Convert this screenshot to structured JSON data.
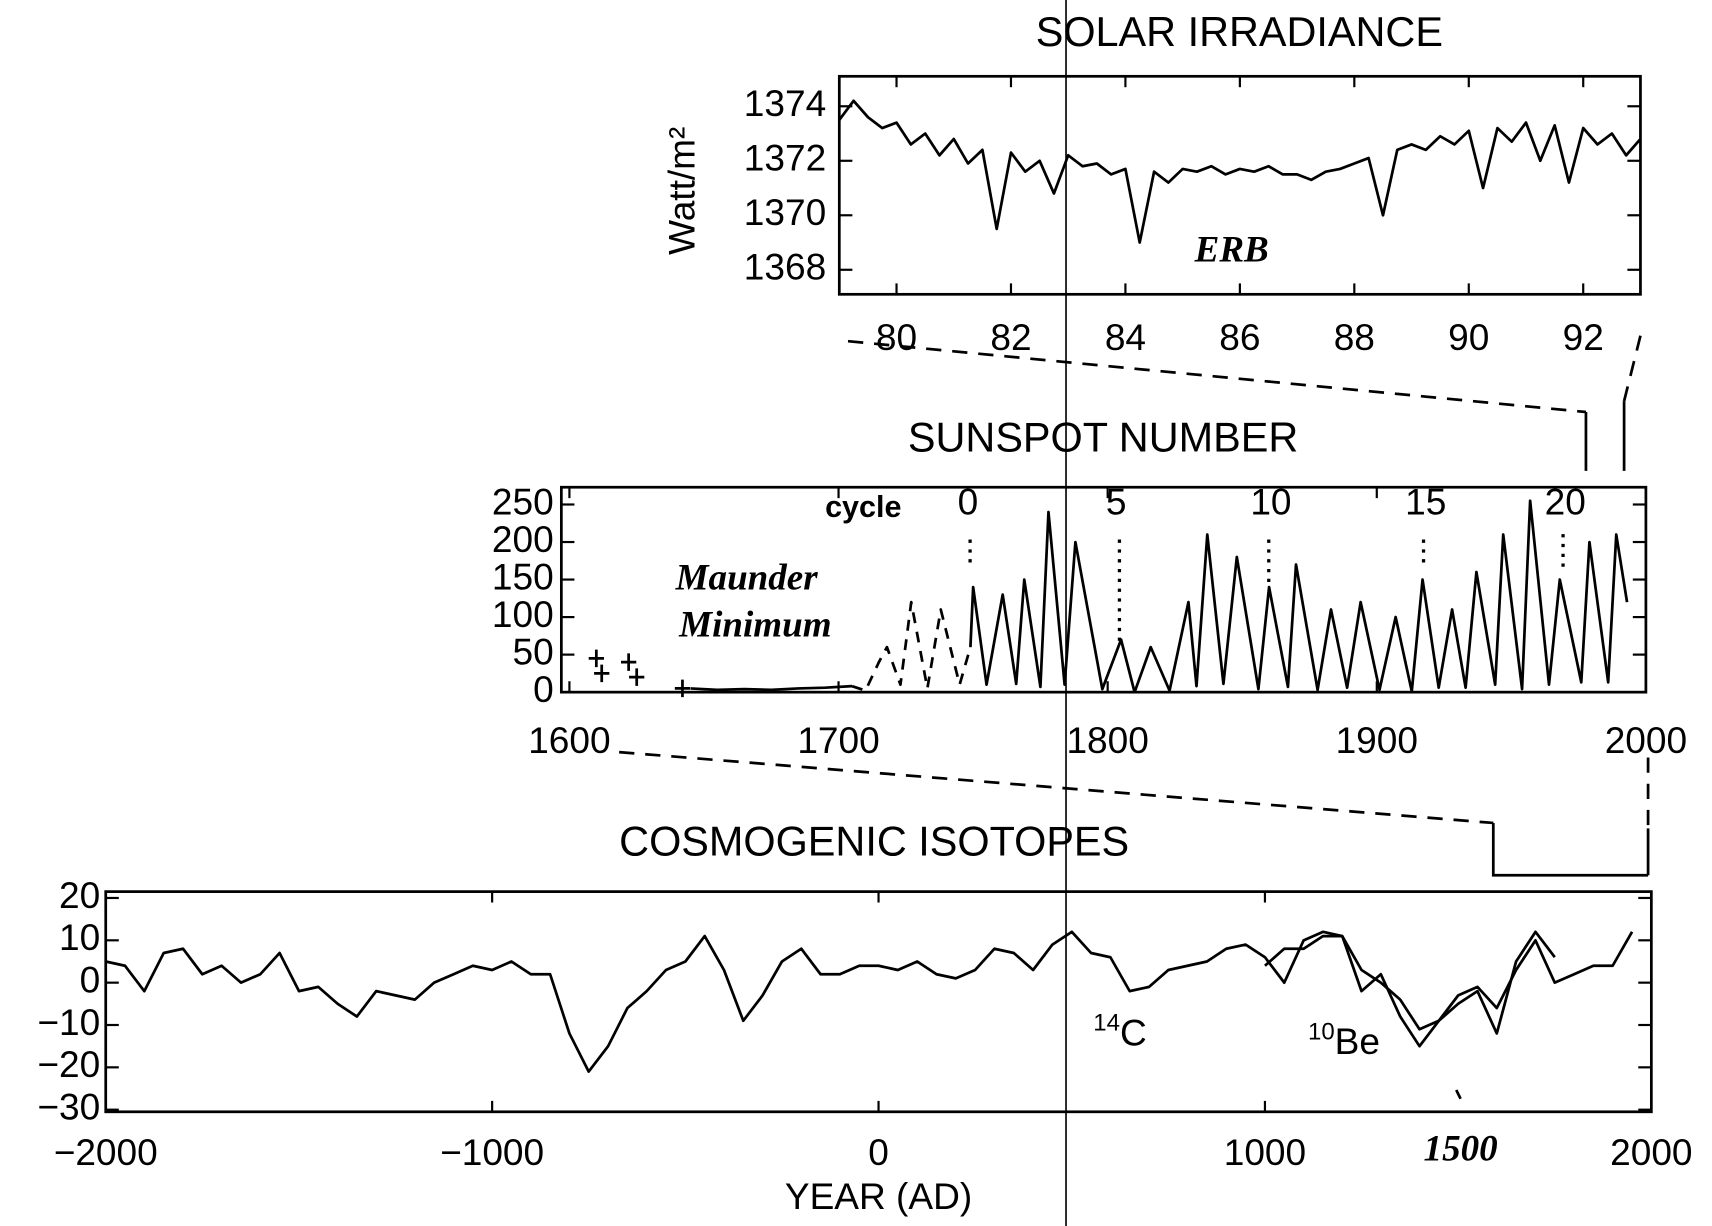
{
  "chart_data": [
    {
      "type": "line",
      "title": "SOLAR IRRADIANCE",
      "y_label": "Watt/m²",
      "annotations": [
        "ERB"
      ],
      "xlim": [
        79,
        93
      ],
      "xticks": [
        80,
        82,
        84,
        86,
        88,
        90,
        92
      ],
      "ylim": [
        1367.1,
        1375.1
      ],
      "yticks": [
        1368,
        1370,
        1372,
        1374
      ],
      "series": [
        {
          "color": "#000000",
          "dash": false,
          "x": [
            79.0,
            79.25,
            79.5,
            79.75,
            80.0,
            80.25,
            80.5,
            80.75,
            81.0,
            81.25,
            81.5,
            81.75,
            82.0,
            82.25,
            82.5,
            82.75,
            83.0,
            83.25,
            83.5,
            83.75,
            84.0,
            84.25,
            84.5,
            84.75,
            85.0,
            85.25,
            85.5,
            85.75,
            86.0,
            86.25,
            86.5,
            86.75,
            87.0,
            87.25,
            87.5,
            87.75,
            88.0,
            88.25,
            88.5,
            88.75,
            89.0,
            89.25,
            89.5,
            89.75,
            90.0,
            90.25,
            90.5,
            90.75,
            91.0,
            91.25,
            91.5,
            91.75,
            92.0,
            92.25,
            92.5,
            92.75,
            93.0
          ],
          "values": [
            1373.5,
            1374.2,
            1373.6,
            1373.2,
            1373.4,
            1372.6,
            1373.0,
            1372.2,
            1372.8,
            1371.9,
            1372.4,
            1369.5,
            1372.3,
            1371.6,
            1372.0,
            1370.8,
            1372.2,
            1371.8,
            1371.9,
            1371.5,
            1371.7,
            1369.0,
            1371.6,
            1371.2,
            1371.7,
            1371.6,
            1371.8,
            1371.5,
            1371.7,
            1371.6,
            1371.8,
            1371.5,
            1371.5,
            1371.3,
            1371.6,
            1371.7,
            1371.9,
            1372.1,
            1370.0,
            1372.4,
            1372.6,
            1372.4,
            1372.9,
            1372.6,
            1373.1,
            1371.0,
            1373.2,
            1372.7,
            1373.4,
            1372.0,
            1373.3,
            1371.2,
            1373.2,
            1372.6,
            1373.0,
            1372.2,
            1372.8
          ]
        }
      ]
    },
    {
      "type": "line",
      "title": "SUNSPOT NUMBER",
      "annotations": [
        "cycle",
        "0",
        "5",
        "10",
        "15",
        "20",
        "Maunder",
        "Minimum"
      ],
      "xlim": [
        1597,
        2000
      ],
      "xticks": [
        1600,
        1700,
        1800,
        1900,
        2000
      ],
      "ylim": [
        0,
        273
      ],
      "yticks": [
        0,
        50,
        100,
        150,
        200,
        250
      ],
      "points": {
        "x": [
          1610,
          1612,
          1622,
          1625,
          1642
        ],
        "values": [
          45,
          25,
          40,
          20,
          5
        ]
      },
      "series": [
        {
          "color": "#000000",
          "dash": false,
          "x": [
            1645,
            1655,
            1665,
            1675,
            1685,
            1695,
            1705
          ],
          "values": [
            5,
            3,
            4,
            3,
            5,
            6,
            8
          ]
        },
        {
          "color": "#000000",
          "dash": true,
          "x": [
            1705,
            1710,
            1715,
            1718,
            1723,
            1727,
            1733,
            1738,
            1745,
            1749
          ],
          "values": [
            8,
            2,
            40,
            60,
            10,
            120,
            5,
            110,
            10,
            60
          ]
        },
        {
          "color": "#000000",
          "dash": false,
          "x": [
            1749,
            1750,
            1755,
            1761,
            1766,
            1769,
            1775,
            1778,
            1784,
            1788,
            1798,
            1805,
            1810,
            1816,
            1823,
            1830,
            1833,
            1837,
            1843,
            1848,
            1856,
            1860,
            1867,
            1870,
            1878,
            1883,
            1889,
            1894,
            1901,
            1907,
            1913,
            1917,
            1923,
            1928,
            1933,
            1937,
            1944,
            1947,
            1954,
            1957,
            1964,
            1968,
            1976,
            1979,
            1986,
            1989,
            1993
          ],
          "values": [
            60,
            140,
            10,
            130,
            11,
            150,
            7,
            240,
            10,
            200,
            4,
            70,
            0,
            60,
            2,
            120,
            8,
            210,
            11,
            180,
            4,
            140,
            7,
            170,
            3,
            110,
            6,
            120,
            3,
            100,
            1,
            150,
            6,
            110,
            6,
            160,
            10,
            210,
            4,
            255,
            10,
            150,
            13,
            200,
            13,
            210,
            120
          ]
        }
      ]
    },
    {
      "type": "line",
      "title": "COSMOGENIC ISOTOPES",
      "x_label": "YEAR (AD)",
      "annotations": [
        "1500"
      ],
      "isotope_labels": [
        {
          "mass": "14",
          "symbol": "C"
        },
        {
          "mass": "10",
          "symbol": "Be"
        }
      ],
      "xlim": [
        -2000,
        2000
      ],
      "xticks": [
        {
          "value": -2000,
          "label": "−2000"
        },
        {
          "value": -1000,
          "label": "−1000"
        },
        0,
        1000,
        2000
      ],
      "ylim": [
        -30.5,
        21.5
      ],
      "yticks": [
        20,
        10,
        0,
        {
          "value": -10,
          "label": "−10"
        },
        {
          "value": -20,
          "label": "−20"
        },
        {
          "value": -30,
          "label": "−30"
        }
      ],
      "series": [
        {
          "color": "#000000",
          "dash": false,
          "x": [
            -2000,
            -1950,
            -1900,
            -1850,
            -1800,
            -1750,
            -1700,
            -1650,
            -1600,
            -1550,
            -1500,
            -1450,
            -1400,
            -1350,
            -1300,
            -1250,
            -1200,
            -1150,
            -1100,
            -1050,
            -1000,
            -950,
            -900,
            -850,
            -800,
            -750,
            -700,
            -650,
            -600,
            -550,
            -500,
            -450,
            -400,
            -350,
            -300,
            -250,
            -200,
            -150,
            -100,
            -50,
            0,
            50,
            100,
            150,
            200,
            250,
            300,
            350,
            400,
            450,
            500,
            550,
            600,
            650,
            700,
            750,
            800,
            850,
            900,
            950,
            1000,
            1050,
            1100,
            1150,
            1200,
            1250,
            1300,
            1350,
            1400,
            1450,
            1500,
            1550,
            1600,
            1650,
            1700,
            1750,
            1800,
            1850,
            1900,
            1950
          ],
          "values": [
            5,
            4,
            -2,
            7,
            8,
            2,
            4,
            0,
            2,
            7,
            -2,
            -1,
            -5,
            -8,
            -2,
            -3,
            -4,
            0,
            2,
            4,
            3,
            5,
            2,
            2,
            -12,
            -21,
            -15,
            -6,
            -2,
            3,
            5,
            11,
            3,
            -9,
            -3,
            5,
            8,
            2,
            2,
            4,
            4,
            3,
            5,
            2,
            1,
            3,
            8,
            7,
            3,
            9,
            12,
            7,
            6,
            -2,
            -1,
            3,
            4,
            5,
            8,
            9,
            6,
            0,
            10,
            12,
            11,
            3,
            0,
            -4,
            -11,
            -9,
            -3,
            -1,
            -6,
            3,
            10,
            0,
            2,
            4,
            4,
            12
          ]
        },
        {
          "color": "#000000",
          "dash": false,
          "x": [
            1000,
            1050,
            1100,
            1150,
            1200,
            1250,
            1300,
            1350,
            1400,
            1450,
            1500,
            1550,
            1600,
            1650,
            1700,
            1750
          ],
          "values": [
            4,
            8,
            8,
            11,
            11,
            -2,
            2,
            -8,
            -15,
            -9,
            -5,
            -2,
            -12,
            5,
            12,
            6
          ]
        }
      ]
    }
  ]
}
